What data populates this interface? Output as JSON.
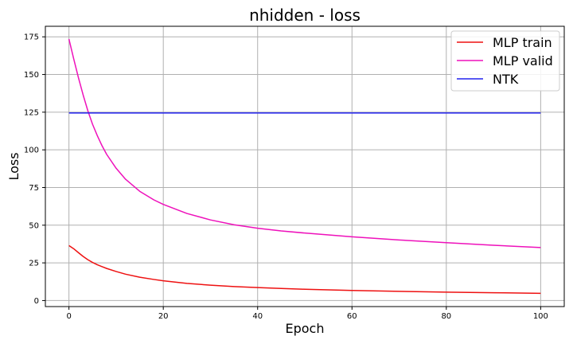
{
  "chart_data": {
    "type": "line",
    "title": "nhidden - loss",
    "xlabel": "Epoch",
    "ylabel": "Loss",
    "xlim": [
      -5,
      105
    ],
    "ylim": [
      -4,
      182
    ],
    "xticks": [
      0,
      20,
      40,
      60,
      80,
      100
    ],
    "yticks": [
      0,
      25,
      50,
      75,
      100,
      125,
      150,
      175
    ],
    "grid": true,
    "legend_position": "top-right",
    "x": [
      0,
      1,
      2,
      3,
      4,
      5,
      6,
      7,
      8,
      10,
      12,
      15,
      18,
      20,
      25,
      30,
      35,
      40,
      45,
      50,
      60,
      70,
      80,
      90,
      100
    ],
    "series": [
      {
        "name": "MLP train",
        "color": "#ee1111",
        "values": [
          36.5,
          34.4,
          31.8,
          29.3,
          27.1,
          25.3,
          23.8,
          22.5,
          21.3,
          19.3,
          17.5,
          15.5,
          14.0,
          13.1,
          11.4,
          10.2,
          9.3,
          8.6,
          8.0,
          7.5,
          6.7,
          6.1,
          5.6,
          5.2,
          4.8
        ]
      },
      {
        "name": "MLP valid",
        "color": "#ee11bb",
        "values": [
          173.5,
          160.5,
          148.0,
          136.5,
          126.0,
          117.0,
          109.5,
          102.8,
          97.0,
          87.8,
          80.5,
          72.5,
          66.8,
          63.8,
          57.8,
          53.5,
          50.3,
          48.0,
          46.2,
          44.8,
          42.3,
          40.2,
          38.4,
          36.7,
          35.2
        ]
      },
      {
        "name": "NTK",
        "color": "#2222ee",
        "values": [
          124.5,
          124.5,
          124.5,
          124.5,
          124.5,
          124.5,
          124.5,
          124.5,
          124.5,
          124.5,
          124.5,
          124.5,
          124.5,
          124.5,
          124.5,
          124.5,
          124.5,
          124.5,
          124.5,
          124.5,
          124.5,
          124.5,
          124.5,
          124.5,
          124.5
        ]
      }
    ]
  }
}
